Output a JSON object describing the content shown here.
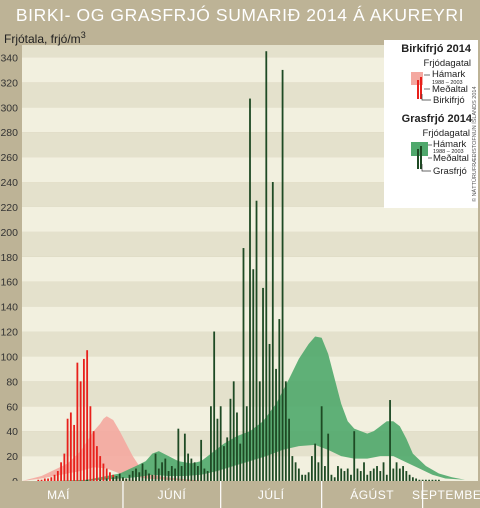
{
  "title": "BIRKI- OG GRASFRJÓ SUMARIÐ 2014 Á AKUREYRI",
  "chart_data": {
    "type": "bar",
    "ylabel": "Frjótala, frjó/m",
    "ylabel_sup": "3",
    "ylim": [
      0,
      350
    ],
    "yticks": [
      0,
      20,
      40,
      60,
      80,
      100,
      120,
      140,
      160,
      180,
      200,
      220,
      240,
      260,
      280,
      300,
      320,
      340
    ],
    "months": [
      "MAÍ",
      "JÚNÍ",
      "JÚLÍ",
      "ÁGÚST",
      "SEPTEMBER"
    ],
    "x_days": 140,
    "month_start_days": [
      0,
      31,
      61,
      92,
      123
    ],
    "series": [
      {
        "name": "Birkifrjó",
        "kind": "bars",
        "color": "#e8201b",
        "values": [
          [
            5,
            1
          ],
          [
            6,
            1
          ],
          [
            7,
            2
          ],
          [
            8,
            2
          ],
          [
            9,
            3
          ],
          [
            10,
            5
          ],
          [
            11,
            8
          ],
          [
            12,
            15
          ],
          [
            13,
            22
          ],
          [
            14,
            50
          ],
          [
            15,
            55
          ],
          [
            16,
            45
          ],
          [
            17,
            95
          ],
          [
            18,
            80
          ],
          [
            19,
            98
          ],
          [
            20,
            105
          ],
          [
            21,
            60
          ],
          [
            22,
            40
          ],
          [
            23,
            28
          ],
          [
            24,
            20
          ],
          [
            25,
            14
          ],
          [
            26,
            10
          ],
          [
            27,
            7
          ],
          [
            28,
            5
          ],
          [
            29,
            4
          ],
          [
            30,
            3
          ],
          [
            31,
            2
          ],
          [
            32,
            2
          ],
          [
            33,
            1
          ],
          [
            34,
            1
          ],
          [
            35,
            1
          ]
        ]
      },
      {
        "name": "Grasfrjó",
        "kind": "bars",
        "color": "#1e4a24",
        "values": [
          [
            20,
            1
          ],
          [
            24,
            1
          ],
          [
            26,
            2
          ],
          [
            28,
            3
          ],
          [
            29,
            4
          ],
          [
            30,
            6
          ],
          [
            31,
            3
          ],
          [
            32,
            2
          ],
          [
            33,
            5
          ],
          [
            34,
            8
          ],
          [
            35,
            10
          ],
          [
            36,
            7
          ],
          [
            37,
            14
          ],
          [
            38,
            9
          ],
          [
            39,
            6
          ],
          [
            40,
            5
          ],
          [
            41,
            22
          ],
          [
            42,
            10
          ],
          [
            43,
            15
          ],
          [
            44,
            18
          ],
          [
            45,
            8
          ],
          [
            46,
            12
          ],
          [
            47,
            10
          ],
          [
            48,
            42
          ],
          [
            49,
            12
          ],
          [
            50,
            38
          ],
          [
            51,
            22
          ],
          [
            52,
            18
          ],
          [
            53,
            15
          ],
          [
            54,
            12
          ],
          [
            55,
            33
          ],
          [
            56,
            10
          ],
          [
            57,
            8
          ],
          [
            58,
            60
          ],
          [
            59,
            120
          ],
          [
            60,
            50
          ],
          [
            61,
            60
          ],
          [
            62,
            28
          ],
          [
            63,
            35
          ],
          [
            64,
            66
          ],
          [
            65,
            80
          ],
          [
            66,
            55
          ],
          [
            67,
            30
          ],
          [
            68,
            187
          ],
          [
            69,
            60
          ],
          [
            70,
            307
          ],
          [
            71,
            170
          ],
          [
            72,
            225
          ],
          [
            73,
            80
          ],
          [
            74,
            155
          ],
          [
            75,
            345
          ],
          [
            76,
            110
          ],
          [
            77,
            240
          ],
          [
            78,
            90
          ],
          [
            79,
            130
          ],
          [
            80,
            330
          ],
          [
            81,
            80
          ],
          [
            82,
            50
          ],
          [
            83,
            20
          ],
          [
            84,
            15
          ],
          [
            85,
            10
          ],
          [
            86,
            5
          ],
          [
            87,
            5
          ],
          [
            88,
            7
          ],
          [
            89,
            20
          ],
          [
            90,
            30
          ],
          [
            91,
            15
          ],
          [
            92,
            60
          ],
          [
            93,
            12
          ],
          [
            94,
            38
          ],
          [
            95,
            5
          ],
          [
            96,
            3
          ],
          [
            97,
            12
          ],
          [
            98,
            10
          ],
          [
            99,
            8
          ],
          [
            100,
            10
          ],
          [
            101,
            5
          ],
          [
            102,
            40
          ],
          [
            103,
            10
          ],
          [
            104,
            8
          ],
          [
            105,
            15
          ],
          [
            106,
            5
          ],
          [
            107,
            8
          ],
          [
            108,
            10
          ],
          [
            109,
            12
          ],
          [
            110,
            8
          ],
          [
            111,
            15
          ],
          [
            112,
            5
          ],
          [
            113,
            65
          ],
          [
            114,
            10
          ],
          [
            115,
            15
          ],
          [
            116,
            10
          ],
          [
            117,
            12
          ],
          [
            118,
            8
          ],
          [
            119,
            5
          ],
          [
            120,
            3
          ],
          [
            121,
            2
          ],
          [
            122,
            1
          ],
          [
            123,
            1
          ],
          [
            124,
            1
          ],
          [
            125,
            1
          ],
          [
            126,
            1
          ],
          [
            127,
            1
          ],
          [
            128,
            1
          ]
        ]
      },
      {
        "name": "Birkifrjódagatal",
        "kind": "band",
        "color": "#f4a8a0",
        "upper": [
          [
            0,
            0
          ],
          [
            6,
            4
          ],
          [
            10,
            9
          ],
          [
            14,
            14
          ],
          [
            18,
            24
          ],
          [
            20,
            32
          ],
          [
            22,
            40
          ],
          [
            24,
            46
          ],
          [
            25,
            50
          ],
          [
            26,
            52
          ],
          [
            28,
            49
          ],
          [
            30,
            40
          ],
          [
            32,
            30
          ],
          [
            34,
            20
          ],
          [
            36,
            12
          ],
          [
            38,
            8
          ],
          [
            40,
            5
          ],
          [
            44,
            3
          ],
          [
            48,
            2
          ],
          [
            52,
            1
          ],
          [
            56,
            0
          ]
        ],
        "lower": [
          [
            0,
            0
          ],
          [
            6,
            2
          ],
          [
            10,
            4
          ],
          [
            14,
            6
          ],
          [
            18,
            8
          ],
          [
            22,
            11
          ],
          [
            26,
            10
          ],
          [
            30,
            6
          ],
          [
            34,
            4
          ],
          [
            38,
            2
          ],
          [
            44,
            1
          ],
          [
            52,
            0
          ]
        ]
      },
      {
        "name": "Grasfrjódagatal",
        "kind": "band",
        "color": "#4fa86c",
        "upper": [
          [
            10,
            0
          ],
          [
            20,
            1
          ],
          [
            30,
            6
          ],
          [
            35,
            12
          ],
          [
            38,
            16
          ],
          [
            40,
            22
          ],
          [
            42,
            24
          ],
          [
            45,
            20
          ],
          [
            48,
            16
          ],
          [
            52,
            14
          ],
          [
            55,
            16
          ],
          [
            58,
            22
          ],
          [
            62,
            30
          ],
          [
            66,
            36
          ],
          [
            70,
            40
          ],
          [
            74,
            48
          ],
          [
            78,
            62
          ],
          [
            82,
            82
          ],
          [
            85,
            98
          ],
          [
            88,
            110
          ],
          [
            90,
            116
          ],
          [
            92,
            115
          ],
          [
            94,
            102
          ],
          [
            96,
            82
          ],
          [
            98,
            62
          ],
          [
            100,
            48
          ],
          [
            102,
            42
          ],
          [
            104,
            40
          ],
          [
            106,
            38
          ],
          [
            108,
            40
          ],
          [
            110,
            44
          ],
          [
            112,
            48
          ],
          [
            114,
            48
          ],
          [
            116,
            44
          ],
          [
            118,
            34
          ],
          [
            120,
            22
          ],
          [
            124,
            12
          ],
          [
            128,
            6
          ],
          [
            132,
            3
          ],
          [
            136,
            1
          ],
          [
            140,
            0
          ]
        ],
        "lower": [
          [
            10,
            0
          ],
          [
            20,
            0
          ],
          [
            30,
            2
          ],
          [
            35,
            3
          ],
          [
            40,
            5
          ],
          [
            45,
            4
          ],
          [
            50,
            4
          ],
          [
            55,
            5
          ],
          [
            60,
            8
          ],
          [
            65,
            12
          ],
          [
            70,
            16
          ],
          [
            75,
            20
          ],
          [
            80,
            25
          ],
          [
            85,
            28
          ],
          [
            90,
            29
          ],
          [
            94,
            25
          ],
          [
            98,
            20
          ],
          [
            102,
            18
          ],
          [
            106,
            18
          ],
          [
            110,
            20
          ],
          [
            114,
            20
          ],
          [
            118,
            15
          ],
          [
            122,
            10
          ],
          [
            126,
            5
          ],
          [
            130,
            2
          ],
          [
            136,
            1
          ],
          [
            140,
            0
          ]
        ]
      }
    ]
  },
  "legend": {
    "birch": {
      "heading": "Birkifrjó 2014",
      "subheading": "Frjódagatal",
      "max": "Hámark",
      "years": "1988 – 2003",
      "mean": "Meðaltal",
      "count": "Birkifrjó"
    },
    "grass": {
      "heading": "Grasfrjó 2014",
      "subheading": "Frjódagatal",
      "max": "Hámark",
      "years": "1988 – 2003",
      "mean": "Meðaltal",
      "count": "Grasfrjó"
    }
  },
  "credit": "© NÁTTÚRUFRÆÐISTOFNUN ÍSLANDS 2014",
  "colors": {
    "background": "#bdb396",
    "plot_light": "#f2f0df",
    "plot_dark": "#e4e1cc",
    "axis": "#d3cbb0",
    "birch_bar": "#e8201b",
    "grass_bar": "#1e4a24"
  }
}
